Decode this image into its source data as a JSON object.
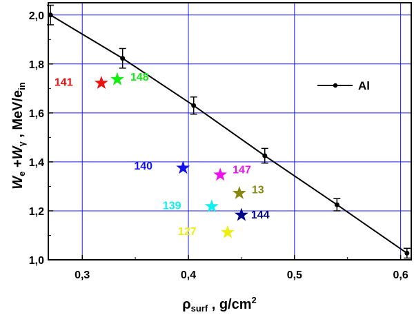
{
  "chart_data": {
    "type": "scatter",
    "title": "",
    "xlabel": {
      "main": "ρ",
      "sub": "surf",
      "rest": " , g/cm",
      "sup": "2"
    },
    "ylabel": {
      "w1": "W",
      "s1": "e",
      "plus": " +",
      "w2": "W",
      "s2": "γ",
      "rest": " , MeV/e",
      "s3": "in"
    },
    "xlim": [
      0.268,
      0.61
    ],
    "ylim": [
      1.0,
      2.05
    ],
    "x_ticks": [
      0.3,
      0.4,
      0.5,
      0.6
    ],
    "x_tick_labels": [
      "0,3",
      "0,4",
      "0,5",
      "0,6"
    ],
    "y_ticks": [
      1.0,
      1.2,
      1.4,
      1.6,
      1.8,
      2.0
    ],
    "y_tick_labels": [
      "1,0",
      "1,2",
      "1,4",
      "1,6",
      "1,8",
      "2,0"
    ],
    "grid": true,
    "legend_position": "right",
    "series": [
      {
        "name": "Al",
        "style": "line-with-markers",
        "color": "#000000",
        "x": [
          0.27,
          0.338,
          0.405,
          0.472,
          0.54,
          0.606
        ],
        "y": [
          2.0,
          1.823,
          1.63,
          1.425,
          1.225,
          1.027
        ],
        "err": [
          0.04,
          0.04,
          0.035,
          0.03,
          0.025,
          0.02
        ]
      }
    ],
    "points": [
      {
        "label": "141",
        "x": 0.318,
        "y": 1.722,
        "color": "#ee1111"
      },
      {
        "label": "148",
        "x": 0.333,
        "y": 1.737,
        "color": "#11ee11"
      },
      {
        "label": "140",
        "x": 0.395,
        "y": 1.375,
        "color": "#1111ee"
      },
      {
        "label": "147",
        "x": 0.43,
        "y": 1.347,
        "color": "#ee11ee"
      },
      {
        "label": "13",
        "x": 0.448,
        "y": 1.272,
        "color": "#888811"
      },
      {
        "label": "139",
        "x": 0.422,
        "y": 1.218,
        "color": "#11eeee"
      },
      {
        "label": "144",
        "x": 0.45,
        "y": 1.183,
        "color": "#000088"
      },
      {
        "label": "127",
        "x": 0.437,
        "y": 1.112,
        "color": "#eeee11"
      }
    ]
  }
}
